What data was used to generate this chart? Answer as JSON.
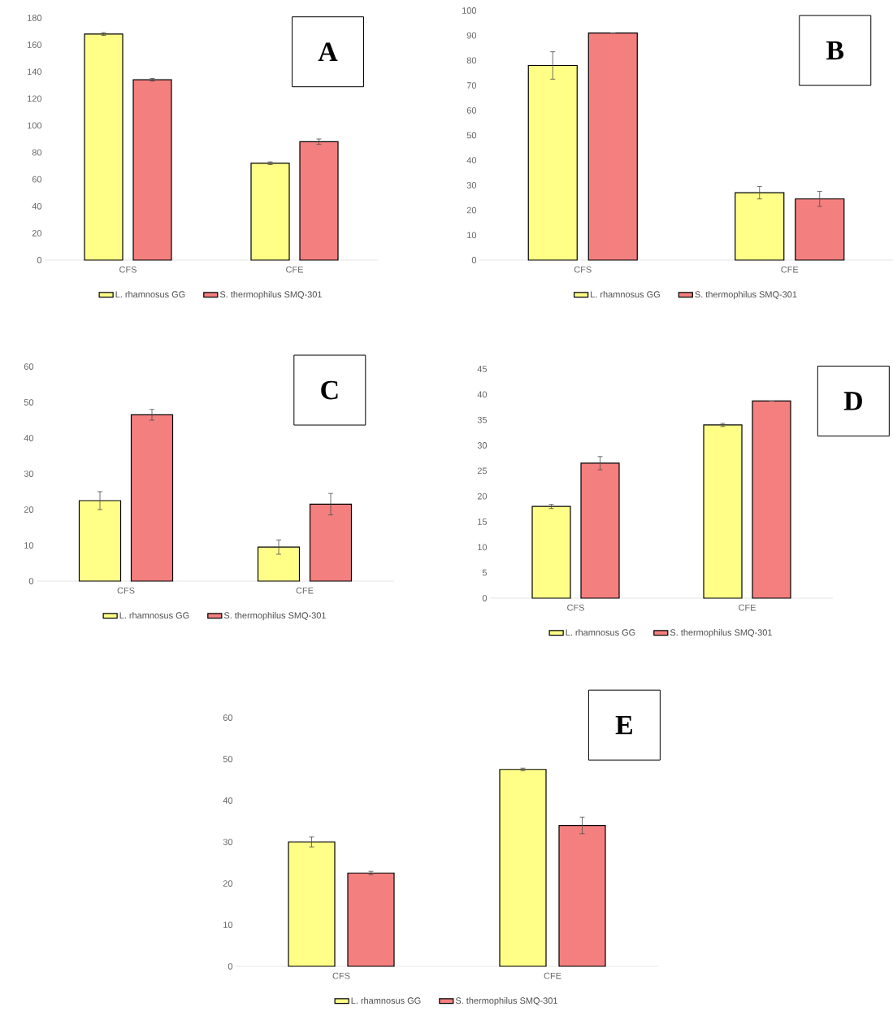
{
  "chart_data": [
    {
      "type": "bar",
      "categories": [
        "CFS",
        "CFE"
      ],
      "ylim": [
        0,
        180
      ],
      "yticks": [
        0,
        20,
        40,
        60,
        80,
        100,
        120,
        140,
        160,
        180
      ],
      "legend": "bottom",
      "annotations": [
        "A"
      ],
      "series": [
        {
          "name": "L. rhamnosus GG",
          "color": "#ffff88",
          "values": [
            168,
            72
          ],
          "errors": [
            1,
            1
          ]
        },
        {
          "name": "S. thermophilus SMQ-301",
          "color": "#f47f7f",
          "values": [
            134,
            88
          ],
          "errors": [
            1,
            2
          ]
        }
      ]
    },
    {
      "type": "bar",
      "categories": [
        "CFS",
        "CFE"
      ],
      "ylim": [
        0,
        100
      ],
      "yticks": [
        0,
        10,
        20,
        30,
        40,
        50,
        60,
        70,
        80,
        90,
        100
      ],
      "legend": "bottom",
      "annotations": [
        "B"
      ],
      "series": [
        {
          "name": "L. rhamnosus GG",
          "color": "#ffff88",
          "values": [
            78,
            27
          ],
          "errors": [
            5.5,
            2.5
          ]
        },
        {
          "name": "S. thermophilus SMQ-301",
          "color": "#f47f7f",
          "values": [
            91,
            24.5
          ],
          "errors": [
            null,
            3
          ]
        }
      ]
    },
    {
      "type": "bar",
      "categories": [
        "CFS",
        "CFE"
      ],
      "ylim": [
        0,
        60
      ],
      "yticks": [
        0,
        10,
        20,
        30,
        40,
        50,
        60
      ],
      "legend": "bottom",
      "annotations": [
        "C"
      ],
      "series": [
        {
          "name": "L. rhamnosus GG",
          "color": "#ffff88",
          "values": [
            22.5,
            9.5
          ],
          "errors": [
            2.5,
            2
          ]
        },
        {
          "name": "S. thermophilus SMQ-301",
          "color": "#f47f7f",
          "values": [
            46.5,
            21.5
          ],
          "errors": [
            1.5,
            3
          ]
        }
      ]
    },
    {
      "type": "bar",
      "categories": [
        "CFS",
        "CFE"
      ],
      "ylim": [
        0,
        45
      ],
      "yticks": [
        0,
        5,
        10,
        15,
        20,
        25,
        30,
        35,
        40,
        45
      ],
      "legend": "bottom",
      "annotations": [
        "D"
      ],
      "series": [
        {
          "name": "L. rhamnosus GG",
          "color": "#ffff88",
          "values": [
            18,
            34
          ],
          "errors": [
            0.4,
            0.3
          ]
        },
        {
          "name": "S. thermophilus SMQ-301",
          "color": "#f47f7f",
          "values": [
            26.5,
            38.7
          ],
          "errors": [
            1.3,
            null
          ]
        }
      ]
    },
    {
      "type": "bar",
      "categories": [
        "CFS",
        "CFE"
      ],
      "ylim": [
        0,
        60
      ],
      "yticks": [
        0,
        10,
        20,
        30,
        40,
        50,
        60
      ],
      "legend": "bottom",
      "annotations": [
        "E"
      ],
      "series": [
        {
          "name": "L. rhamnosus GG",
          "color": "#ffff88",
          "values": [
            30,
            47.5
          ],
          "errors": [
            1.2,
            0.3
          ]
        },
        {
          "name": "S. thermophilus SMQ-301",
          "color": "#f47f7f",
          "values": [
            22.5,
            34
          ],
          "errors": [
            0.4,
            2
          ]
        }
      ]
    }
  ]
}
